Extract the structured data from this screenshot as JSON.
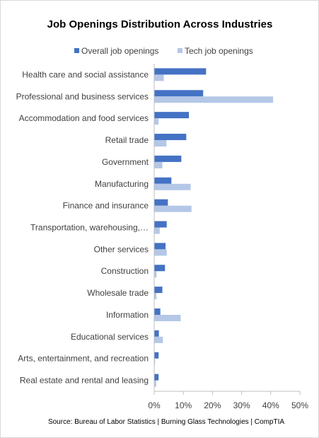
{
  "chart_data": {
    "type": "bar",
    "orientation": "horizontal",
    "title": "Job Openings Distribution Across Industries",
    "categories": [
      "Health care and social assistance",
      "Professional and business services",
      "Accommodation and food services",
      "Retail trade",
      "Government",
      "Manufacturing",
      "Finance and insurance",
      "Transportation, warehousing,…",
      "Other services",
      "Construction",
      "Wholesale trade",
      "Information",
      "Educational services",
      "Arts, entertainment, and recreation",
      "Real estate and rental and leasing"
    ],
    "series": [
      {
        "name": "Overall job openings",
        "color": "#4472c4",
        "values": [
          17.8,
          16.8,
          11.9,
          11.0,
          9.3,
          5.9,
          4.7,
          4.3,
          3.9,
          3.7,
          2.8,
          2.1,
          1.6,
          1.5,
          1.5
        ]
      },
      {
        "name": "Tech job openings",
        "color": "#b4c7e7",
        "values": [
          3.3,
          40.8,
          1.5,
          4.2,
          2.8,
          12.5,
          12.8,
          1.9,
          4.3,
          0.8,
          0.8,
          9.1,
          3.0,
          0.3,
          0.7
        ]
      }
    ],
    "xlim": [
      0,
      50
    ],
    "xticks": [
      "0%",
      "10%",
      "20%",
      "30%",
      "40%",
      "50%"
    ],
    "legend_position": "top",
    "grid": false,
    "source": "Source: Bureau of Labor Statistics | Burning Glass Technologies | CompTIA"
  }
}
